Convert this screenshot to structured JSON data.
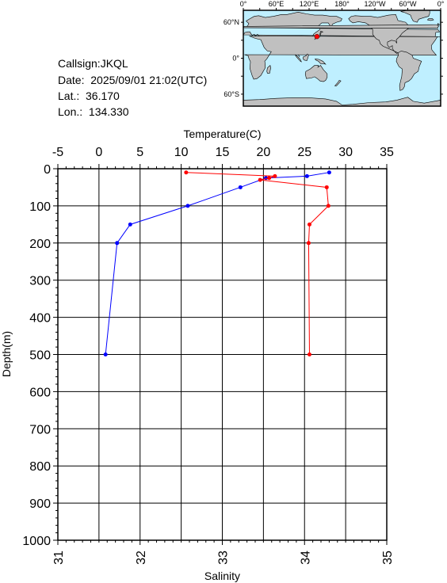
{
  "station": {
    "callsign": "Callsign:JKQL",
    "date": "Date:  2025/09/01 21:02(UTC)",
    "lat": "Lat.:  36.170",
    "lon": "Lon.:  134.330"
  },
  "colors": {
    "temperature": "#0000ff",
    "salinity": "#ff0000",
    "land": "#c0c0c0",
    "ocean": "#bfefff",
    "marker": "#ff0000"
  },
  "map": {
    "top_labels": [
      "0°",
      "60°E",
      "120°E",
      "180°",
      "120°W",
      "60°W",
      "0°"
    ],
    "lat_labels": [
      "60°N",
      "0°",
      "60°S"
    ],
    "station_marker": {
      "lat": 36.17,
      "lon": 134.33
    }
  },
  "chart_data": {
    "type": "line",
    "title": "",
    "top_axis_label": "Temperature(C)",
    "bottom_axis_label": "Salinity",
    "ylabel": "Depth(m)",
    "temperature_range": [
      -5,
      35
    ],
    "temperature_ticks": [
      "-5",
      "0",
      "5",
      "10",
      "15",
      "20",
      "25",
      "30",
      "35"
    ],
    "salinity_range": [
      31,
      35
    ],
    "salinity_ticks": [
      "31",
      "32",
      "33",
      "34",
      "35"
    ],
    "depth_range": [
      0,
      1000
    ],
    "depth_ticks": [
      "0",
      "100",
      "200",
      "300",
      "400",
      "500",
      "600",
      "700",
      "800",
      "900",
      "1000"
    ],
    "grid": true,
    "series": [
      {
        "name": "Temperature",
        "axis": "temperature",
        "depth": [
          10,
          20,
          25,
          50,
          100,
          150,
          200,
          500
        ],
        "values": [
          28.0,
          25.3,
          20.3,
          17.2,
          10.8,
          3.8,
          2.2,
          0.8
        ]
      },
      {
        "name": "Salinity",
        "axis": "salinity",
        "depth": [
          10,
          20,
          25,
          30,
          50,
          100,
          150,
          200,
          500
        ],
        "values": [
          32.56,
          33.64,
          33.57,
          33.46,
          34.27,
          34.29,
          34.06,
          34.05,
          34.06
        ]
      }
    ]
  }
}
